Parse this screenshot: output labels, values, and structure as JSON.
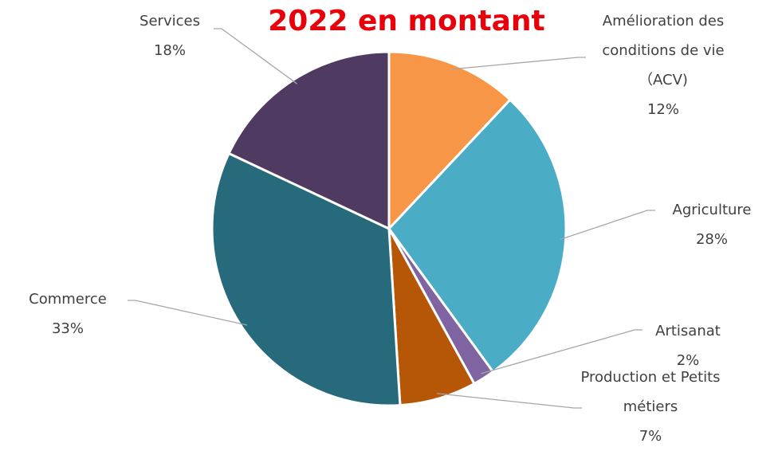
{
  "chart_data": {
    "type": "pie",
    "title": "2022 en montant",
    "categories": [
      "Amélioration des conditions de vie（ACV)",
      "Agriculture",
      "Artisanat",
      "Production et Petits métiers",
      "Commerce",
      "Services"
    ],
    "values": [
      12,
      28,
      2,
      7,
      33,
      18
    ],
    "value_labels": [
      "12%",
      "28%",
      "2%",
      "7%",
      "33%",
      "18%"
    ],
    "colors": [
      "#F79646",
      "#4BACC6",
      "#8064A2",
      "#B65708",
      "#276A7C",
      "#4F3B62"
    ]
  }
}
